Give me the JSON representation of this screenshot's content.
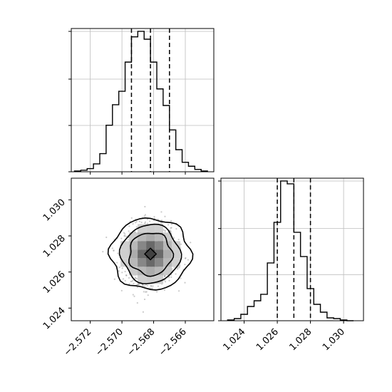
{
  "chart_data": [
    {
      "panel": "histogram-top-left",
      "type": "bar",
      "title": "",
      "xlabel": "",
      "ylabel": "",
      "grid": true,
      "xlim": [
        -2.5732,
        -2.5642
      ],
      "bin_edges": [
        -2.573,
        -2.5726,
        -2.5722,
        -2.5718,
        -2.5714,
        -2.571,
        -2.5706,
        -2.5702,
        -2.5698,
        -2.5694,
        -2.569,
        -2.5686,
        -2.5682,
        -2.5678,
        -2.5674,
        -2.567,
        -2.5666,
        -2.5662,
        -2.5658,
        -2.5654,
        -2.565,
        -2.5646
      ],
      "values": [
        1,
        2,
        4,
        10,
        23,
        59,
        85,
        102,
        139,
        171,
        178,
        168,
        139,
        105,
        84,
        53,
        28,
        12,
        7,
        3,
        1
      ],
      "quantiles": [
        -2.5694,
        -2.5682,
        -2.567
      ]
    },
    {
      "panel": "scatter-density-bottom-left",
      "type": "scatter",
      "title": "",
      "xlabel": "",
      "ylabel": "",
      "xlim": [
        -2.5732,
        -2.5642
      ],
      "ylim": [
        1.0233,
        1.0312
      ],
      "x_tick_labels": [
        "−2.572",
        "−2.570",
        "−2.568",
        "−2.566"
      ],
      "y_tick_labels": [
        "1.024",
        "1.026",
        "1.028",
        "1.030"
      ],
      "center": [
        -2.5682,
        1.027
      ],
      "spread": [
        0.0008,
        0.0008
      ],
      "contour_levels": [
        "inner",
        "second",
        "third",
        "outer"
      ]
    },
    {
      "panel": "histogram-bottom-right",
      "type": "bar",
      "title": "",
      "xlabel": "",
      "ylabel": "",
      "grid": true,
      "xlim": [
        1.0226,
        1.0312
      ],
      "x_tick_labels": [
        "1.024",
        "1.026",
        "1.028",
        "1.030"
      ],
      "bin_edges": [
        1.023,
        1.0234,
        1.0238,
        1.0242,
        1.0246,
        1.025,
        1.0254,
        1.0258,
        1.0262,
        1.0266,
        1.027,
        1.0274,
        1.0278,
        1.0282,
        1.0286,
        1.029,
        1.0294,
        1.0298,
        1.0302,
        1.0306
      ],
      "values": [
        1,
        3,
        9,
        20,
        28,
        37,
        81,
        138,
        196,
        192,
        124,
        90,
        45,
        23,
        12,
        4,
        3,
        1,
        0
      ],
      "quantiles": [
        1.026,
        1.027,
        1.028
      ]
    }
  ]
}
